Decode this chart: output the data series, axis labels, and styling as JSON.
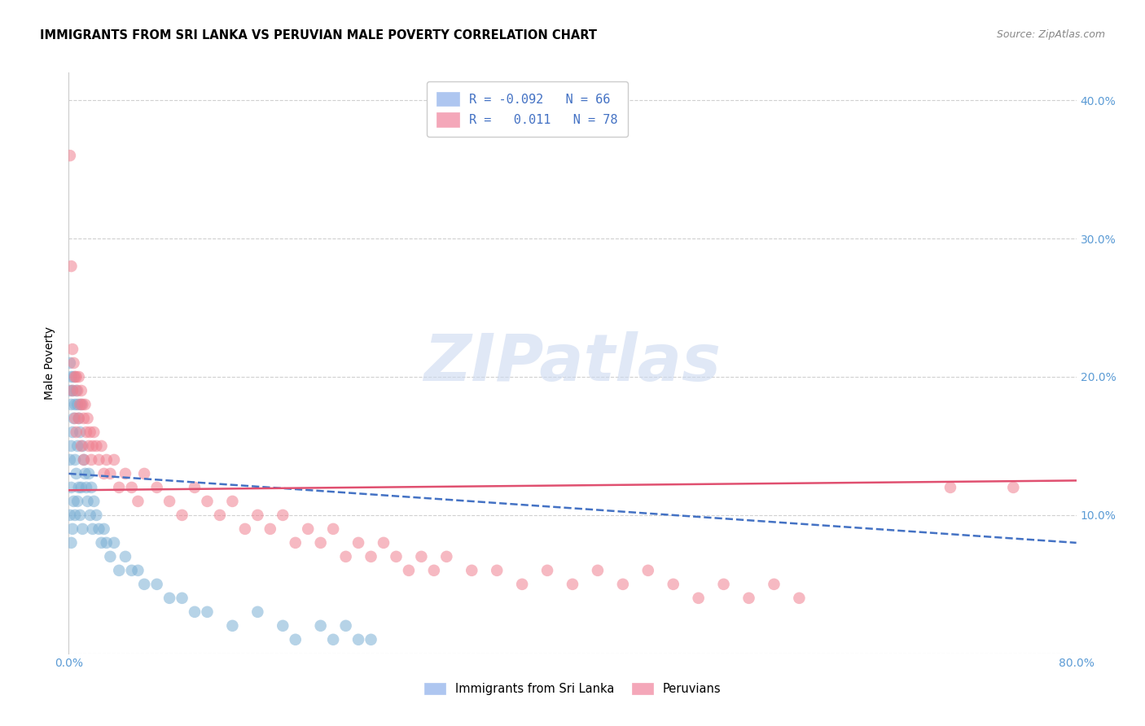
{
  "title": "IMMIGRANTS FROM SRI LANKA VS PERUVIAN MALE POVERTY CORRELATION CHART",
  "source": "Source: ZipAtlas.com",
  "ylabel": "Male Poverty",
  "xlim": [
    0.0,
    0.8
  ],
  "ylim": [
    0.0,
    0.42
  ],
  "blue_color": "#7bafd4",
  "pink_color": "#f08090",
  "blue_line_color": "#4472c4",
  "pink_line_color": "#e05070",
  "watermark": "ZIPatlas",
  "background_color": "#ffffff",
  "grid_color": "#d0d0d0",
  "tick_label_color": "#5b9bd5",
  "blue_x": [
    0.001,
    0.001,
    0.001,
    0.001,
    0.002,
    0.002,
    0.002,
    0.002,
    0.002,
    0.003,
    0.003,
    0.003,
    0.004,
    0.004,
    0.004,
    0.005,
    0.005,
    0.005,
    0.006,
    0.006,
    0.007,
    0.007,
    0.007,
    0.008,
    0.008,
    0.009,
    0.009,
    0.01,
    0.01,
    0.011,
    0.011,
    0.012,
    0.013,
    0.014,
    0.015,
    0.016,
    0.017,
    0.018,
    0.019,
    0.02,
    0.022,
    0.024,
    0.026,
    0.028,
    0.03,
    0.033,
    0.036,
    0.04,
    0.045,
    0.05,
    0.055,
    0.06,
    0.07,
    0.08,
    0.09,
    0.1,
    0.11,
    0.13,
    0.15,
    0.17,
    0.18,
    0.2,
    0.21,
    0.22,
    0.23,
    0.24
  ],
  "blue_y": [
    0.19,
    0.21,
    0.14,
    0.1,
    0.2,
    0.18,
    0.15,
    0.12,
    0.08,
    0.19,
    0.16,
    0.09,
    0.2,
    0.17,
    0.11,
    0.18,
    0.14,
    0.1,
    0.19,
    0.13,
    0.18,
    0.15,
    0.11,
    0.17,
    0.12,
    0.16,
    0.1,
    0.18,
    0.12,
    0.15,
    0.09,
    0.14,
    0.13,
    0.12,
    0.11,
    0.13,
    0.1,
    0.12,
    0.09,
    0.11,
    0.1,
    0.09,
    0.08,
    0.09,
    0.08,
    0.07,
    0.08,
    0.06,
    0.07,
    0.06,
    0.06,
    0.05,
    0.05,
    0.04,
    0.04,
    0.03,
    0.03,
    0.02,
    0.03,
    0.02,
    0.01,
    0.02,
    0.01,
    0.02,
    0.01,
    0.01
  ],
  "pink_x": [
    0.001,
    0.002,
    0.003,
    0.003,
    0.004,
    0.005,
    0.005,
    0.006,
    0.006,
    0.007,
    0.008,
    0.008,
    0.009,
    0.01,
    0.01,
    0.011,
    0.012,
    0.012,
    0.013,
    0.014,
    0.015,
    0.016,
    0.017,
    0.018,
    0.019,
    0.02,
    0.022,
    0.024,
    0.026,
    0.028,
    0.03,
    0.033,
    0.036,
    0.04,
    0.045,
    0.05,
    0.055,
    0.06,
    0.07,
    0.08,
    0.09,
    0.1,
    0.11,
    0.12,
    0.13,
    0.14,
    0.15,
    0.16,
    0.17,
    0.18,
    0.19,
    0.2,
    0.21,
    0.22,
    0.23,
    0.24,
    0.25,
    0.26,
    0.27,
    0.28,
    0.29,
    0.3,
    0.32,
    0.34,
    0.36,
    0.38,
    0.4,
    0.42,
    0.44,
    0.46,
    0.48,
    0.5,
    0.52,
    0.54,
    0.56,
    0.58,
    0.7,
    0.75
  ],
  "pink_y": [
    0.36,
    0.28,
    0.22,
    0.19,
    0.21,
    0.2,
    0.17,
    0.2,
    0.16,
    0.19,
    0.2,
    0.17,
    0.18,
    0.19,
    0.15,
    0.18,
    0.17,
    0.14,
    0.18,
    0.16,
    0.17,
    0.15,
    0.16,
    0.14,
    0.15,
    0.16,
    0.15,
    0.14,
    0.15,
    0.13,
    0.14,
    0.13,
    0.14,
    0.12,
    0.13,
    0.12,
    0.11,
    0.13,
    0.12,
    0.11,
    0.1,
    0.12,
    0.11,
    0.1,
    0.11,
    0.09,
    0.1,
    0.09,
    0.1,
    0.08,
    0.09,
    0.08,
    0.09,
    0.07,
    0.08,
    0.07,
    0.08,
    0.07,
    0.06,
    0.07,
    0.06,
    0.07,
    0.06,
    0.06,
    0.05,
    0.06,
    0.05,
    0.06,
    0.05,
    0.06,
    0.05,
    0.04,
    0.05,
    0.04,
    0.05,
    0.04,
    0.12,
    0.12
  ],
  "blue_trend_x": [
    0.0,
    0.8
  ],
  "blue_trend_y": [
    0.13,
    0.08
  ],
  "pink_trend_x": [
    0.0,
    0.8
  ],
  "pink_trend_y": [
    0.118,
    0.125
  ]
}
